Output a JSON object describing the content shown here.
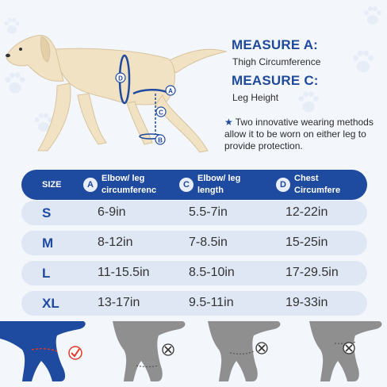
{
  "measure_a": {
    "title": "MEASURE A:",
    "subtitle": "Thigh Circumference"
  },
  "measure_c": {
    "title": "MEASURE C:",
    "subtitle": "Leg Height"
  },
  "note": {
    "star": "★",
    "text": "Two innovative wearing methods allow it to be worn on either leg to provide protection."
  },
  "dog_labels": {
    "d": "D",
    "a": "A",
    "c": "C",
    "b": "B"
  },
  "table": {
    "headers": {
      "size": "SIZE",
      "a_badge": "A",
      "a_line1": "Elbow/ leg",
      "a_line2": "circumferenc",
      "c_badge": "C",
      "c_line1": "Elbow/ leg",
      "c_line2": "length",
      "d_badge": "D",
      "d_line1": "Chest",
      "d_line2": "Circumfere"
    },
    "rows": [
      {
        "size": "S",
        "a": "6-9in",
        "c": "5.5-7in",
        "d": "12-22in"
      },
      {
        "size": "M",
        "a": "8-12in",
        "c": "7-8.5in",
        "d": "15-25in"
      },
      {
        "size": "L",
        "a": "11-15.5in",
        "c": "8.5-10in",
        "d": "17-29.5in"
      },
      {
        "size": "XL",
        "a": "13-17in",
        "c": "9.5-11in",
        "d": "19-33in"
      }
    ]
  },
  "colors": {
    "accent": "#1e4aa0",
    "row_bg": "#dfe7f5",
    "correct": "#e0392b",
    "wrong_leg": "#8f8f8f"
  }
}
